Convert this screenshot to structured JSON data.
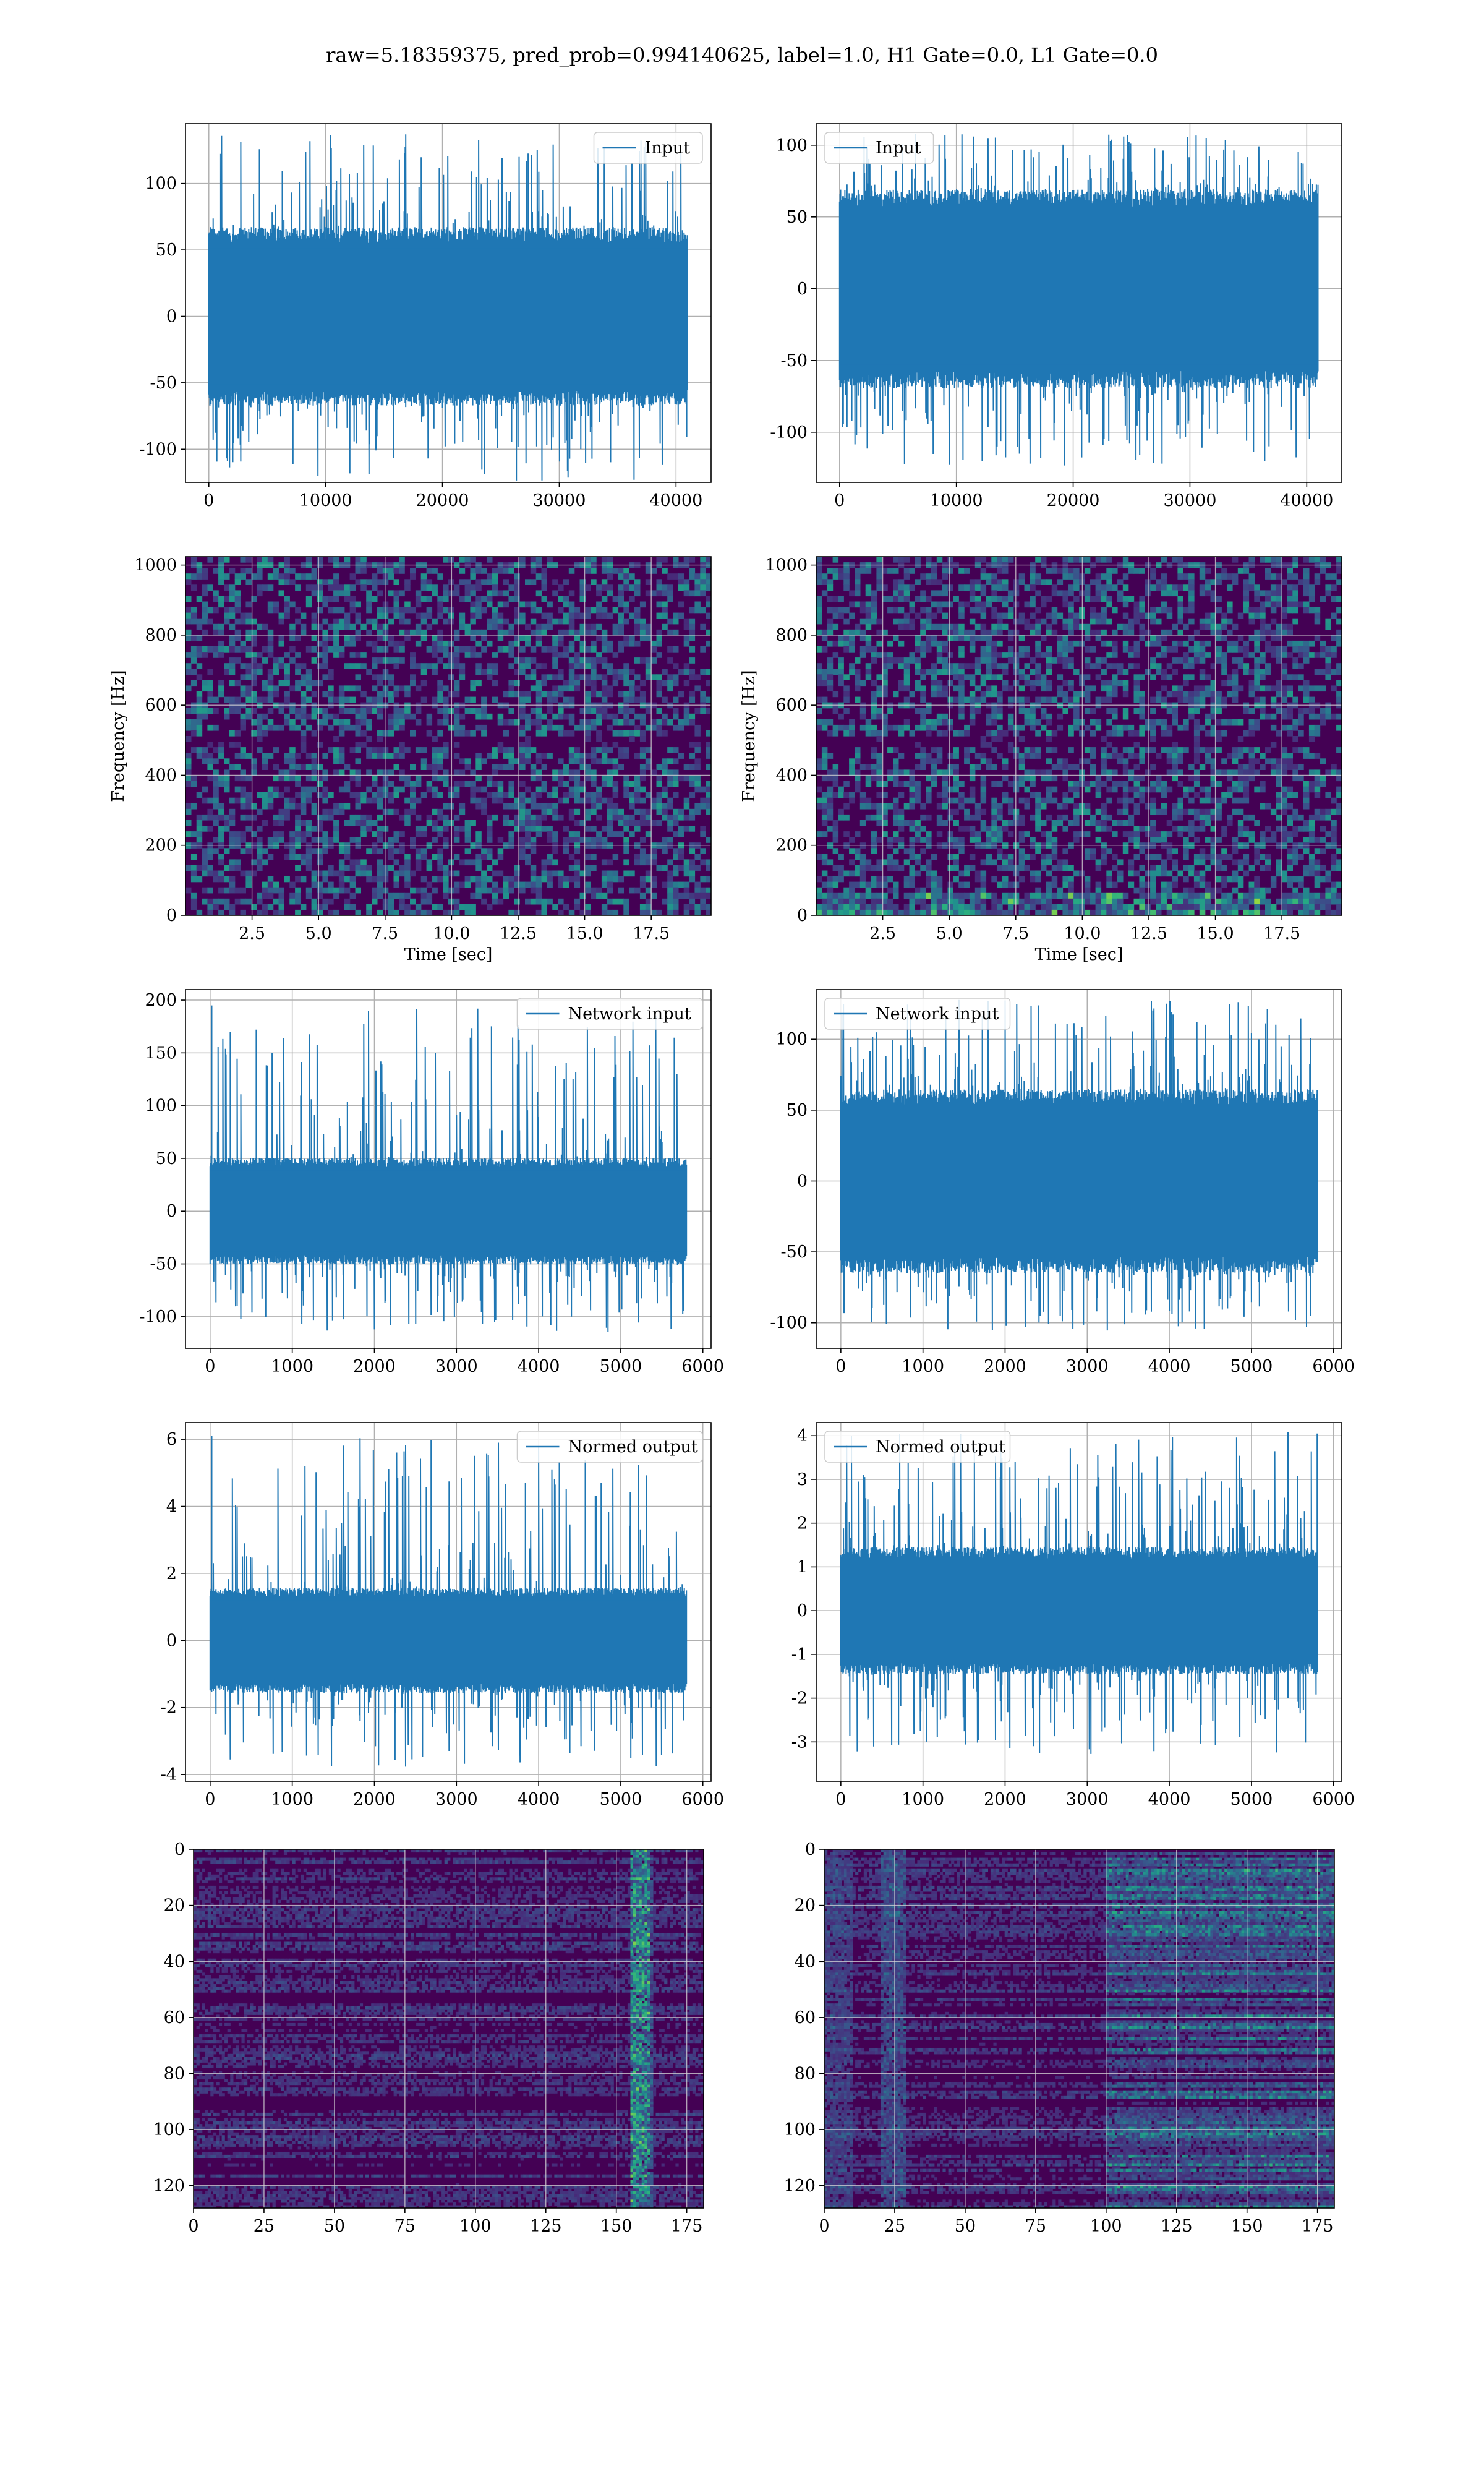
{
  "figure": {
    "title": "raw=5.18359375, pred_prob=0.994140625, label=1.0, H1 Gate=0.0, L1 Gate=0.0"
  },
  "colors": {
    "series": "#1f77b4",
    "grid": "#b0b0b0",
    "viridis_dark": "#440154",
    "viridis_yellow": "#fde725"
  },
  "chart_data": [
    {
      "id": "input_h1",
      "type": "line",
      "legend": "Input",
      "legend_loc": "upper right",
      "xlim": [
        -2000,
        43000
      ],
      "ylim": [
        -125,
        145
      ],
      "xticks": [
        0,
        10000,
        20000,
        30000,
        40000
      ],
      "yticks": [
        -100,
        -50,
        0,
        50,
        100
      ],
      "x_range": [
        0,
        40960
      ],
      "envelope": {
        "core": 60,
        "peak_max": 137,
        "trough_min": -124
      },
      "grid": true
    },
    {
      "id": "input_l1",
      "type": "line",
      "legend": "Input",
      "legend_loc": "upper left",
      "xlim": [
        -2000,
        43000
      ],
      "ylim": [
        -135,
        115
      ],
      "xticks": [
        0,
        10000,
        20000,
        30000,
        40000
      ],
      "yticks": [
        -100,
        -50,
        0,
        50,
        100
      ],
      "x_range": [
        0,
        40960
      ],
      "envelope": {
        "core": 62,
        "peak_max": 108,
        "trough_min": -124
      },
      "grid": true
    },
    {
      "id": "spec_h1",
      "type": "heatmap",
      "xlabel": "Time [sec]",
      "ylabel": "Frequency [Hz]",
      "xlim": [
        0,
        19.75
      ],
      "ylim": [
        0,
        1024
      ],
      "xticks": [
        2.5,
        5.0,
        7.5,
        10.0,
        12.5,
        15.0,
        17.5
      ],
      "xtick_labels": [
        "2.5",
        "5.0",
        "7.5",
        "10.0",
        "12.5",
        "15.0",
        "17.5"
      ],
      "yticks": [
        0,
        200,
        400,
        600,
        800,
        1000
      ],
      "colormap": "viridis",
      "grid": true
    },
    {
      "id": "spec_l1",
      "type": "heatmap",
      "xlabel": "Time [sec]",
      "ylabel": "Frequency [Hz]",
      "xlim": [
        0,
        19.75
      ],
      "ylim": [
        0,
        1024
      ],
      "xticks": [
        2.5,
        5.0,
        7.5,
        10.0,
        12.5,
        15.0,
        17.5
      ],
      "xtick_labels": [
        "2.5",
        "5.0",
        "7.5",
        "10.0",
        "12.5",
        "15.0",
        "17.5"
      ],
      "yticks": [
        0,
        200,
        400,
        600,
        800,
        1000
      ],
      "colormap": "viridis",
      "grid": true
    },
    {
      "id": "net_h1",
      "type": "line",
      "legend": "Network input",
      "legend_loc": "upper right",
      "xlim": [
        -300,
        6100
      ],
      "ylim": [
        -130,
        210
      ],
      "xticks": [
        0,
        1000,
        2000,
        3000,
        4000,
        5000,
        6000
      ],
      "yticks": [
        -100,
        -50,
        0,
        50,
        100,
        150,
        200
      ],
      "x_range": [
        0,
        5800
      ],
      "envelope": {
        "core": 45,
        "peak_max": 195,
        "trough_min": -115
      },
      "grid": true
    },
    {
      "id": "net_l1",
      "type": "line",
      "legend": "Network input",
      "legend_loc": "upper left",
      "xlim": [
        -300,
        6100
      ],
      "ylim": [
        -118,
        135
      ],
      "xticks": [
        0,
        1000,
        2000,
        3000,
        4000,
        5000,
        6000
      ],
      "yticks": [
        -100,
        -50,
        0,
        50,
        100
      ],
      "x_range": [
        0,
        5800
      ],
      "envelope": {
        "core": 58,
        "peak_max": 128,
        "trough_min": -106
      },
      "grid": true
    },
    {
      "id": "norm_h1",
      "type": "line",
      "legend": "Normed output",
      "legend_loc": "upper right",
      "xlim": [
        -300,
        6100
      ],
      "ylim": [
        -4.2,
        6.5
      ],
      "xticks": [
        0,
        1000,
        2000,
        3000,
        4000,
        5000,
        6000
      ],
      "yticks": [
        -4,
        -2,
        0,
        2,
        4,
        6
      ],
      "x_range": [
        0,
        5800
      ],
      "envelope": {
        "core": 1.4,
        "peak_max": 6.1,
        "trough_min": -3.8
      },
      "grid": true
    },
    {
      "id": "norm_l1",
      "type": "line",
      "legend": "Normed output",
      "legend_loc": "upper left",
      "xlim": [
        -300,
        6100
      ],
      "ylim": [
        -3.9,
        4.3
      ],
      "xticks": [
        0,
        1000,
        2000,
        3000,
        4000,
        5000,
        6000
      ],
      "yticks": [
        -3,
        -2,
        -1,
        0,
        1,
        2,
        3,
        4
      ],
      "x_range": [
        0,
        5800
      ],
      "envelope": {
        "core": 1.3,
        "peak_max": 4.1,
        "trough_min": -3.3
      },
      "grid": true
    },
    {
      "id": "feat_h1",
      "type": "heatmap",
      "xlim": [
        0,
        181
      ],
      "ylim": [
        128,
        0
      ],
      "xticks": [
        0,
        25,
        50,
        75,
        100,
        125,
        150,
        175
      ],
      "yticks": [
        0,
        20,
        40,
        60,
        80,
        100,
        120
      ],
      "colormap": "viridis",
      "bright_columns": [
        155,
        162
      ],
      "grid": true
    },
    {
      "id": "feat_l1",
      "type": "heatmap",
      "xlim": [
        0,
        181
      ],
      "ylim": [
        128,
        0
      ],
      "xticks": [
        0,
        25,
        50,
        75,
        100,
        125,
        150,
        175
      ],
      "yticks": [
        0,
        20,
        40,
        60,
        80,
        100,
        120
      ],
      "colormap": "viridis",
      "bright_columns": [
        100,
        180
      ],
      "grid": true
    }
  ]
}
